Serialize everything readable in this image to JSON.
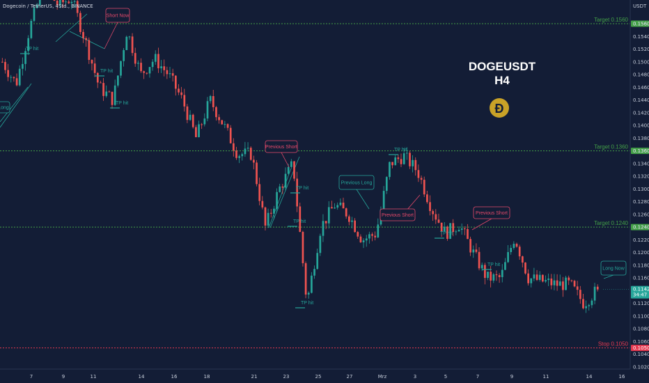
{
  "header": {
    "symbol_line": "Dogecoin / TetherUS, 4Std., BINANCE",
    "currency": "USDT"
  },
  "colors": {
    "background": "#131d36",
    "up": "#26a69a",
    "down": "#ef5350",
    "target": "#43a047",
    "stop": "#e53950",
    "coin": "#c9a227"
  },
  "chart_data": {
    "type": "candlestick",
    "title": "DOGEUSDT",
    "subtitle": "H4",
    "ylim": [
      0.1018,
      0.162
    ],
    "y_ticks": [
      "0.1560",
      "0.1540",
      "0.1520",
      "0.1500",
      "0.1480",
      "0.1460",
      "0.1440",
      "0.1420",
      "0.1400",
      "0.1380",
      "0.1360",
      "0.1340",
      "0.1320",
      "0.1300",
      "0.1280",
      "0.1260",
      "0.1240",
      "0.1220",
      "0.1200",
      "0.1180",
      "0.1160",
      "0.1140",
      "0.1120",
      "0.1100",
      "0.1080",
      "0.1060",
      "0.1040",
      "0.1020"
    ],
    "x_ticks": [
      "7",
      "9",
      "11",
      "14",
      "16",
      "18",
      "21",
      "23",
      "25",
      "27",
      "Mrz",
      "3",
      "5",
      "7",
      "9",
      "11",
      "14",
      "16"
    ],
    "levels": [
      {
        "label": "Target 0.1560",
        "tag": "0.1560",
        "value": 0.156,
        "kind": "target"
      },
      {
        "label": "Target 0.1360",
        "tag": "0.1360",
        "value": 0.136,
        "kind": "target"
      },
      {
        "label": "Target 0.1240",
        "tag": "0.1240",
        "value": 0.124,
        "kind": "target"
      },
      {
        "label": "Stop 0.1050",
        "tag": "0.1050",
        "value": 0.105,
        "kind": "stop"
      }
    ],
    "current_price": {
      "value": 0.1142,
      "price": "0.1142",
      "countdown": "34:47"
    },
    "anchors": [
      [
        0.15,
        0.151
      ],
      [
        0.1465,
        0.147
      ],
      [
        0.1555,
        0.156
      ],
      [
        0.162,
        0.1608
      ],
      [
        0.159,
        0.159
      ],
      [
        0.16,
        0.1595
      ],
      [
        0.1533,
        0.1535
      ],
      [
        0.146,
        0.1465
      ],
      [
        0.144,
        0.1442
      ],
      [
        0.155,
        0.1545
      ],
      [
        0.148,
        0.1482
      ],
      [
        0.1505,
        0.1508
      ],
      [
        0.148,
        0.1478
      ],
      [
        0.144,
        0.1445
      ],
      [
        0.138,
        0.1385
      ],
      [
        0.144,
        0.1445
      ],
      [
        0.14,
        0.1405
      ],
      [
        0.1355,
        0.136
      ],
      [
        0.1355,
        0.135
      ],
      [
        0.124,
        0.1245
      ],
      [
        0.13,
        0.1302
      ],
      [
        0.134,
        0.1338
      ],
      [
        0.112,
        0.1125
      ],
      [
        0.124,
        0.1245
      ],
      [
        0.1275,
        0.1272
      ],
      [
        0.126,
        0.1262
      ],
      [
        0.122,
        0.1225
      ],
      [
        0.123,
        0.124
      ],
      [
        0.134,
        0.1345
      ],
      [
        0.1352,
        0.135
      ],
      [
        0.1328,
        0.133
      ],
      [
        0.127,
        0.1268
      ],
      [
        0.123,
        0.1232
      ],
      [
        0.1245,
        0.1244
      ],
      [
        0.12,
        0.1205
      ],
      [
        0.116,
        0.1165
      ],
      [
        0.116,
        0.1162
      ],
      [
        0.1225,
        0.1222
      ],
      [
        0.116,
        0.1162
      ],
      [
        0.1155,
        0.1157
      ],
      [
        0.115,
        0.1152
      ],
      [
        0.115,
        0.1148
      ],
      [
        0.112,
        0.1118
      ],
      [
        0.1142,
        0.1142
      ]
    ],
    "annotations": {
      "boxes": [
        {
          "text": "Short Now",
          "color": "#e84a6b"
        },
        {
          "text": "Previous Short",
          "color": "#e84a6b"
        },
        {
          "text": "Previous Long",
          "color": "#26a69a"
        },
        {
          "text": "Previous Short",
          "color": "#e84a6b"
        },
        {
          "text": "Previous Short",
          "color": "#e84a6b"
        },
        {
          "text": "Long Now",
          "color": "#26a69a"
        },
        {
          "text": "Long",
          "color": "#26a69a"
        }
      ],
      "tp_labels": [
        "TP hit",
        "TP hit",
        "TP hit",
        "TP hit",
        "TP hit",
        "TP hit",
        "TP hit",
        "TP hit",
        "TP hit"
      ]
    }
  }
}
